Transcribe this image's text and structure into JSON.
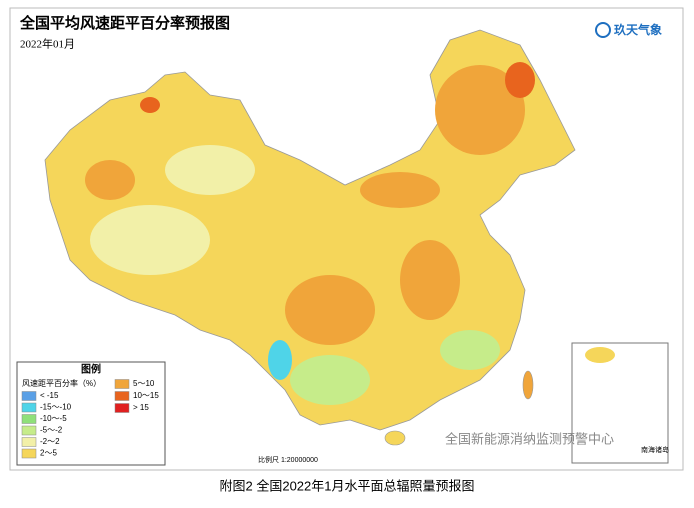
{
  "header": {
    "title": "全国平均风速距平百分率预报图",
    "subtitle": "2022年01月",
    "logo": "玖天气象"
  },
  "legend": {
    "title": "图例",
    "label": "风速距平百分率（%）",
    "items": [
      {
        "label": "< -15",
        "color": "#5aa0e6"
      },
      {
        "label": "-15～-10",
        "color": "#4fd4e8"
      },
      {
        "label": "-10～-5",
        "color": "#8fe07a"
      },
      {
        "label": "-5～-2",
        "color": "#c6ec8a"
      },
      {
        "label": "-2～2",
        "color": "#f2f0a8"
      },
      {
        "label": "2～5",
        "color": "#f5d65a"
      },
      {
        "label": "5～10",
        "color": "#f0a53a"
      },
      {
        "label": "10～15",
        "color": "#e8641e"
      },
      {
        "label": "> 15",
        "color": "#e02020"
      }
    ]
  },
  "scale": "比例尺 1:20000000",
  "inset": "南海诸岛",
  "watermark": "全国新能源消纳监测预警中心",
  "caption": "附图2  全国2022年1月水平面总辐照量预报图"
}
